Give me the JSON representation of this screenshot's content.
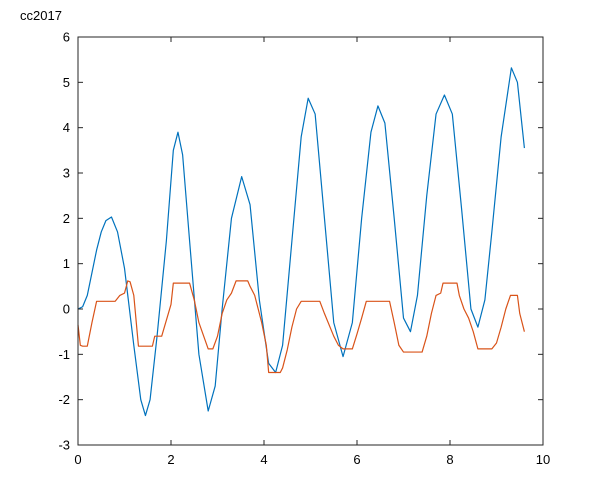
{
  "chart_data": {
    "type": "line",
    "title": "cc2017",
    "xlabel": "",
    "ylabel": "",
    "xlim": [
      0,
      10
    ],
    "ylim": [
      -3,
      6
    ],
    "xticks": [
      0,
      2,
      4,
      6,
      8,
      10
    ],
    "yticks": [
      -3,
      -2,
      -1,
      0,
      1,
      2,
      3,
      4,
      5,
      6
    ],
    "grid": false,
    "legend": "none",
    "series": [
      {
        "name": "blue",
        "color": "#0072bd",
        "x": [
          0,
          0.1,
          0.2,
          0.3,
          0.4,
          0.5,
          0.6,
          0.72,
          0.85,
          1.0,
          1.2,
          1.35,
          1.45,
          1.55,
          1.7,
          1.9,
          2.05,
          2.15,
          2.25,
          2.4,
          2.6,
          2.8,
          2.95,
          3.1,
          3.3,
          3.52,
          3.7,
          3.9,
          4.1,
          4.25,
          4.4,
          4.6,
          4.8,
          4.95,
          5.1,
          5.3,
          5.5,
          5.7,
          5.9,
          6.1,
          6.3,
          6.45,
          6.6,
          6.8,
          7.0,
          7.15,
          7.3,
          7.5,
          7.7,
          7.88,
          8.05,
          8.25,
          8.45,
          8.6,
          8.75,
          8.9,
          9.1,
          9.32,
          9.45,
          9.6
        ],
        "y": [
          0,
          0.05,
          0.3,
          0.8,
          1.3,
          1.7,
          1.95,
          2.03,
          1.7,
          0.9,
          -0.8,
          -2.0,
          -2.35,
          -2.0,
          -0.6,
          1.5,
          3.5,
          3.9,
          3.4,
          1.5,
          -1.0,
          -2.25,
          -1.7,
          0.0,
          2.0,
          2.92,
          2.3,
          0.2,
          -1.2,
          -1.4,
          -0.8,
          1.5,
          3.8,
          4.65,
          4.3,
          2.0,
          -0.3,
          -1.05,
          -0.3,
          2.0,
          3.9,
          4.48,
          4.1,
          2.0,
          -0.2,
          -0.5,
          0.3,
          2.5,
          4.3,
          4.72,
          4.3,
          2.2,
          0.0,
          -0.4,
          0.2,
          1.7,
          3.8,
          5.32,
          5.0,
          3.55
        ]
      },
      {
        "name": "orange",
        "color": "#d95319",
        "x": [
          0,
          0.05,
          0.1,
          0.2,
          0.3,
          0.4,
          0.8,
          0.9,
          1.0,
          1.07,
          1.12,
          1.2,
          1.3,
          1.6,
          1.65,
          1.8,
          2.0,
          2.05,
          2.1,
          2.4,
          2.5,
          2.6,
          2.8,
          2.9,
          3.0,
          3.1,
          3.2,
          3.3,
          3.4,
          3.65,
          3.7,
          3.8,
          3.95,
          4.05,
          4.1,
          4.35,
          4.4,
          4.5,
          4.6,
          4.7,
          4.8,
          4.85,
          5.2,
          5.3,
          5.5,
          5.6,
          5.7,
          5.9,
          6.0,
          6.1,
          6.2,
          6.3,
          6.7,
          6.8,
          6.9,
          7.0,
          7.4,
          7.5,
          7.6,
          7.7,
          7.8,
          7.85,
          8.15,
          8.2,
          8.3,
          8.4,
          8.5,
          8.6,
          8.9,
          9.0,
          9.1,
          9.2,
          9.3,
          9.45,
          9.5,
          9.6
        ],
        "y": [
          -0.35,
          -0.8,
          -0.82,
          -0.82,
          -0.3,
          0.17,
          0.17,
          0.3,
          0.35,
          0.62,
          0.6,
          0.3,
          -0.82,
          -0.82,
          -0.6,
          -0.6,
          0.1,
          0.57,
          0.57,
          0.57,
          0.2,
          -0.3,
          -0.88,
          -0.88,
          -0.6,
          -0.1,
          0.2,
          0.35,
          0.62,
          0.62,
          0.5,
          0.3,
          -0.3,
          -0.8,
          -1.4,
          -1.4,
          -1.3,
          -0.9,
          -0.4,
          0.0,
          0.17,
          0.17,
          0.17,
          -0.1,
          -0.6,
          -0.8,
          -0.88,
          -0.88,
          -0.55,
          -0.2,
          0.17,
          0.17,
          0.17,
          -0.3,
          -0.8,
          -0.95,
          -0.95,
          -0.6,
          -0.1,
          0.3,
          0.35,
          0.57,
          0.57,
          0.3,
          0.0,
          -0.2,
          -0.5,
          -0.88,
          -0.88,
          -0.75,
          -0.4,
          0.0,
          0.3,
          0.3,
          -0.1,
          -0.5
        ]
      }
    ]
  }
}
